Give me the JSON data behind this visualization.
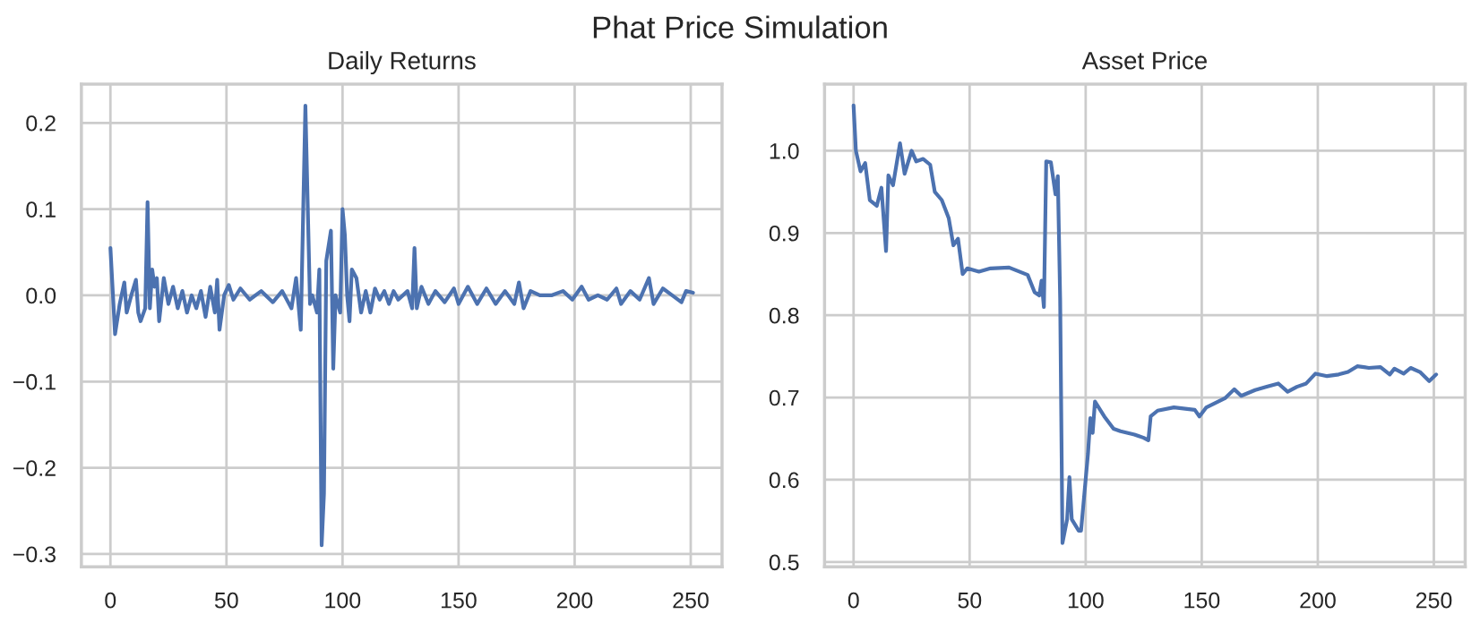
{
  "chart_data": [
    {
      "type": "other",
      "title": "Phat Price Simulation"
    },
    {
      "type": "line",
      "title": "Daily Returns",
      "grid": true,
      "xlim": [
        -12.5,
        263.5
      ],
      "ylim": [
        -0.315,
        0.245
      ],
      "xticks": [
        0,
        50,
        100,
        150,
        200,
        250
      ],
      "yticks": [
        {
          "value": -0.3,
          "label": "−0.3"
        },
        {
          "value": -0.2,
          "label": "−0.2"
        },
        {
          "value": -0.1,
          "label": "−0.1"
        },
        {
          "value": 0,
          "label": "0.0"
        },
        {
          "value": 0.1,
          "label": "0.1"
        },
        {
          "value": 0.2,
          "label": "0.2"
        }
      ],
      "series": [
        {
          "color": "#4c72b0",
          "x": [
            0,
            2,
            4,
            6,
            7,
            9,
            11,
            12,
            13,
            15,
            16,
            17,
            18,
            19,
            20,
            21,
            23,
            25,
            27,
            29,
            31,
            33,
            35,
            37,
            39,
            41,
            43,
            45,
            46,
            47,
            49,
            51,
            53,
            56,
            60,
            65,
            70,
            74,
            78,
            80,
            82,
            84,
            86,
            87,
            89,
            90,
            91,
            92,
            93,
            95,
            96,
            97,
            99,
            100,
            101,
            102,
            103,
            104,
            106,
            108,
            110,
            112,
            114,
            116,
            118,
            120,
            122,
            124,
            128,
            130,
            131,
            132,
            134,
            137,
            140,
            144,
            148,
            150,
            154,
            158,
            162,
            166,
            170,
            174,
            176,
            178,
            181,
            185,
            190,
            195,
            199,
            203,
            206,
            210,
            214,
            218,
            220,
            224,
            228,
            232,
            234,
            238,
            242,
            246,
            248,
            251
          ],
          "values": [
            0.055,
            -0.045,
            -0.01,
            0.015,
            -0.02,
            0.0,
            0.018,
            -0.02,
            -0.03,
            -0.015,
            0.108,
            -0.015,
            0.03,
            0.01,
            0.02,
            -0.03,
            0.02,
            -0.01,
            0.01,
            -0.015,
            0.005,
            -0.02,
            0.0,
            -0.015,
            0.005,
            -0.025,
            0.01,
            -0.02,
            0.018,
            -0.04,
            0.0,
            0.012,
            -0.005,
            0.008,
            -0.005,
            0.005,
            -0.008,
            0.005,
            -0.015,
            0.02,
            -0.04,
            0.22,
            -0.01,
            0.0,
            -0.02,
            0.03,
            -0.29,
            -0.23,
            0.04,
            0.075,
            -0.085,
            0.0,
            -0.02,
            0.1,
            0.07,
            0.0,
            -0.03,
            0.03,
            0.02,
            -0.02,
            0.005,
            -0.02,
            0.008,
            -0.005,
            0.005,
            -0.01,
            0.005,
            -0.005,
            0.005,
            -0.015,
            0.055,
            -0.015,
            0.01,
            -0.01,
            0.005,
            -0.008,
            0.008,
            -0.01,
            0.01,
            -0.01,
            0.008,
            -0.01,
            0.005,
            -0.01,
            0.015,
            -0.015,
            0.005,
            0.0,
            0.0,
            0.005,
            -0.005,
            0.01,
            -0.005,
            0.0,
            -0.005,
            0.008,
            -0.01,
            0.005,
            -0.005,
            0.02,
            -0.01,
            0.008,
            0.0,
            -0.008,
            0.005,
            0.003
          ]
        }
      ]
    },
    {
      "type": "line",
      "title": "Asset Price",
      "grid": true,
      "xlim": [
        -12.5,
        263.5
      ],
      "ylim": [
        0.494,
        1.081
      ],
      "xticks": [
        0,
        50,
        100,
        150,
        200,
        250
      ],
      "yticks": [
        {
          "value": 0.5,
          "label": "0.5"
        },
        {
          "value": 0.6,
          "label": "0.6"
        },
        {
          "value": 0.7,
          "label": "0.7"
        },
        {
          "value": 0.8,
          "label": "0.8"
        },
        {
          "value": 0.9,
          "label": "0.9"
        },
        {
          "value": 1.0,
          "label": "1.0"
        }
      ],
      "series": [
        {
          "color": "#4c72b0",
          "x": [
            0,
            1,
            3,
            5,
            7,
            10,
            12,
            14,
            15,
            17,
            20,
            22,
            25,
            27,
            30,
            33,
            35,
            38,
            41,
            43,
            45,
            47,
            49,
            54,
            59,
            67,
            75,
            78,
            80,
            81,
            82,
            83,
            85,
            87,
            88,
            89,
            90,
            92,
            93,
            94,
            97,
            98,
            101,
            102,
            103,
            104,
            108,
            112,
            115,
            121,
            125,
            127,
            128,
            131,
            138,
            147,
            149,
            152,
            160,
            164,
            167,
            173,
            178,
            183,
            187,
            191,
            195,
            199,
            204,
            209,
            213,
            217,
            222,
            227,
            231,
            233,
            237,
            240,
            244,
            248,
            251
          ],
          "values": [
            1.055,
            1.0,
            0.975,
            0.985,
            0.94,
            0.933,
            0.955,
            0.878,
            0.97,
            0.958,
            1.009,
            0.972,
            1.0,
            0.987,
            0.99,
            0.983,
            0.95,
            0.94,
            0.918,
            0.885,
            0.893,
            0.85,
            0.857,
            0.853,
            0.857,
            0.858,
            0.849,
            0.828,
            0.824,
            0.842,
            0.81,
            0.987,
            0.986,
            0.947,
            0.969,
            0.82,
            0.523,
            0.552,
            0.603,
            0.552,
            0.538,
            0.538,
            0.632,
            0.675,
            0.657,
            0.695,
            0.677,
            0.662,
            0.659,
            0.655,
            0.651,
            0.648,
            0.677,
            0.684,
            0.688,
            0.685,
            0.677,
            0.688,
            0.699,
            0.71,
            0.702,
            0.709,
            0.713,
            0.717,
            0.707,
            0.713,
            0.717,
            0.729,
            0.726,
            0.728,
            0.731,
            0.738,
            0.736,
            0.737,
            0.728,
            0.735,
            0.729,
            0.736,
            0.731,
            0.72,
            0.728
          ]
        }
      ]
    }
  ]
}
